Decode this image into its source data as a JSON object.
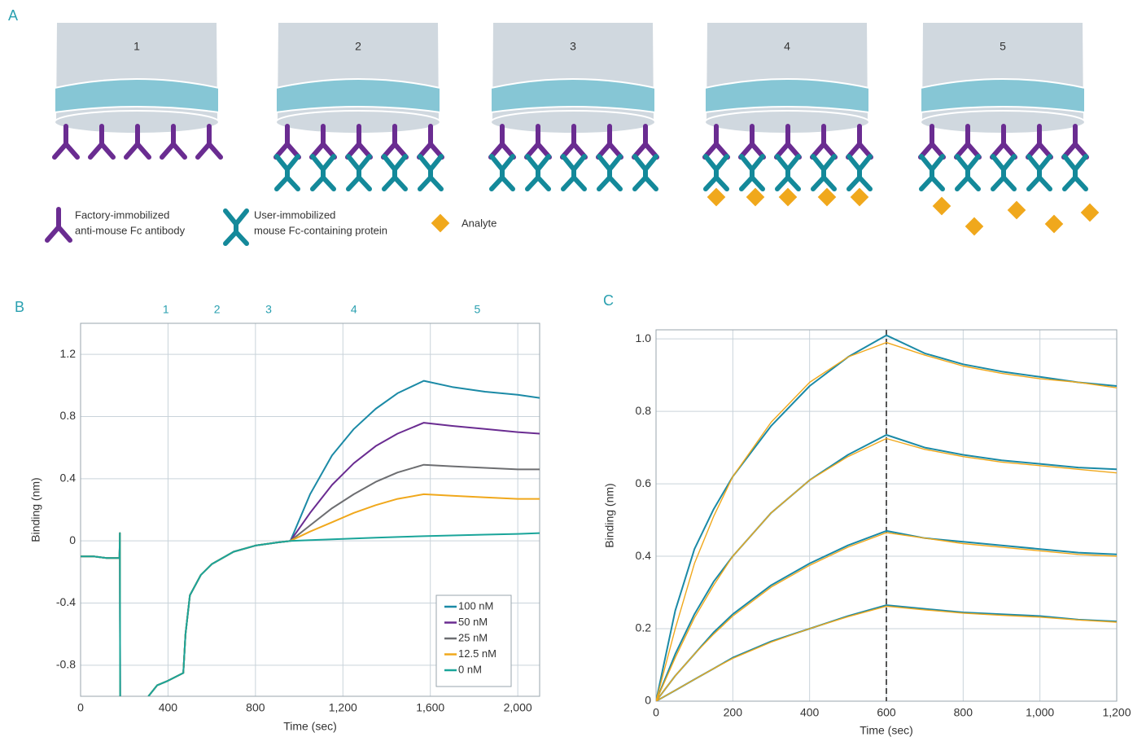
{
  "diagram": {
    "panel": "A",
    "sensors": [
      "1",
      "2",
      "3",
      "4",
      "5"
    ],
    "legend": [
      {
        "lines": [
          "Factory-immobilized",
          "anti-mouse Fc antibody"
        ]
      },
      {
        "lines": [
          "User-immobilized",
          "mouse Fc-containing protein"
        ]
      },
      {
        "lines": [
          "Analyte"
        ]
      }
    ]
  },
  "chart_data": [
    {
      "type": "line",
      "panel": "B",
      "xlabel": "Time (sec)",
      "ylabel": "Binding (nm)",
      "xlim": [
        0,
        2100
      ],
      "ylim": [
        -1.0,
        1.4
      ],
      "xticks": [
        0,
        400,
        800,
        {
          "value": 1200,
          "label": "1,200"
        },
        {
          "value": 1600,
          "label": "1,600"
        },
        {
          "value": 2000,
          "label": "2,000"
        }
      ],
      "yticks": [
        -0.8,
        -0.4,
        0,
        0.4,
        0.8,
        1.2
      ],
      "grid": true,
      "legend": "lower right",
      "annotations": [
        {
          "text": "1",
          "x": 390
        },
        {
          "text": "2",
          "x": 624
        },
        {
          "text": "3",
          "x": 860
        },
        {
          "text": "4",
          "x": 1250
        },
        {
          "text": "5",
          "x": 1815
        }
      ],
      "x": [
        0,
        60,
        120,
        178,
        180,
        181,
        250,
        310,
        350,
        400,
        470,
        480,
        500,
        550,
        600,
        700,
        800,
        900,
        960,
        1050,
        1150,
        1250,
        1350,
        1450,
        1570,
        1700,
        1850,
        2000,
        2100
      ],
      "series": [
        {
          "name": "100 nM",
          "color": "#1b8aa6",
          "values": [
            -0.1,
            -0.1,
            -0.11,
            -0.11,
            0.05,
            -1.0,
            null,
            -1.0,
            -0.93,
            -0.9,
            -0.85,
            -0.6,
            -0.35,
            -0.22,
            -0.15,
            -0.07,
            -0.03,
            -0.01,
            0,
            0.3,
            0.55,
            0.72,
            0.85,
            0.95,
            1.03,
            0.99,
            0.96,
            0.94,
            0.92
          ]
        },
        {
          "name": "50 nM",
          "color": "#6a2c91",
          "values": [
            -0.1,
            -0.1,
            -0.11,
            -0.11,
            0.05,
            -1.0,
            null,
            -1.0,
            -0.93,
            -0.9,
            -0.85,
            -0.6,
            -0.35,
            -0.22,
            -0.15,
            -0.07,
            -0.03,
            -0.01,
            0,
            0.18,
            0.36,
            0.5,
            0.61,
            0.69,
            0.76,
            0.74,
            0.72,
            0.7,
            0.69
          ]
        },
        {
          "name": "25 nM",
          "color": "#6d6e71",
          "values": [
            -0.1,
            -0.1,
            -0.11,
            -0.11,
            0.05,
            -1.0,
            null,
            -1.0,
            -0.93,
            -0.9,
            -0.85,
            -0.6,
            -0.35,
            -0.22,
            -0.15,
            -0.07,
            -0.03,
            -0.01,
            0,
            0.1,
            0.21,
            0.3,
            0.38,
            0.44,
            0.49,
            0.48,
            0.47,
            0.46,
            0.46
          ]
        },
        {
          "name": "12.5 nM",
          "color": "#f0a81c",
          "values": [
            -0.1,
            -0.1,
            -0.11,
            -0.11,
            0.05,
            -1.0,
            null,
            -1.0,
            -0.93,
            -0.9,
            -0.85,
            -0.6,
            -0.35,
            -0.22,
            -0.15,
            -0.07,
            -0.03,
            -0.01,
            0,
            0.06,
            0.12,
            0.18,
            0.23,
            0.27,
            0.3,
            0.29,
            0.28,
            0.27,
            0.27
          ]
        },
        {
          "name": "0 nM",
          "color": "#1aa59a",
          "values": [
            -0.1,
            -0.1,
            -0.11,
            -0.11,
            0.05,
            -1.0,
            null,
            -1.0,
            -0.93,
            -0.9,
            -0.85,
            -0.6,
            -0.35,
            -0.22,
            -0.15,
            -0.07,
            -0.03,
            -0.01,
            0,
            0.005,
            0.01,
            0.015,
            0.02,
            0.025,
            0.03,
            0.035,
            0.04,
            0.045,
            0.05
          ]
        }
      ]
    },
    {
      "type": "line",
      "panel": "C",
      "xlabel": "Time (sec)",
      "ylabel": "Binding (nm)",
      "xlim": [
        0,
        1200
      ],
      "ylim": [
        0,
        1.025
      ],
      "xticks": [
        0,
        200,
        400,
        600,
        800,
        {
          "value": 1000,
          "label": "1,000"
        },
        {
          "value": 1200,
          "label": "1,200"
        }
      ],
      "yticks": [
        0,
        0.2,
        0.4,
        0.6,
        0.8,
        {
          "value": 1.0,
          "label": "1.0"
        }
      ],
      "grid": true,
      "vline": 600,
      "x": [
        0,
        50,
        100,
        150,
        200,
        300,
        400,
        500,
        600,
        700,
        800,
        900,
        1000,
        1100,
        1200
      ],
      "series": [
        {
          "color": "#1b8aa6",
          "values": [
            0,
            0.25,
            0.42,
            0.53,
            0.62,
            0.76,
            0.87,
            0.95,
            1.01,
            0.96,
            0.93,
            0.91,
            0.895,
            0.88,
            0.87
          ]
        },
        {
          "color": "#1b8aa6",
          "values": [
            0,
            0.13,
            0.24,
            0.33,
            0.4,
            0.52,
            0.61,
            0.68,
            0.735,
            0.7,
            0.68,
            0.665,
            0.655,
            0.645,
            0.64
          ]
        },
        {
          "color": "#1b8aa6",
          "values": [
            0,
            0.07,
            0.13,
            0.19,
            0.24,
            0.32,
            0.38,
            0.43,
            0.47,
            0.45,
            0.44,
            0.43,
            0.42,
            0.41,
            0.405
          ]
        },
        {
          "color": "#1b8aa6",
          "values": [
            0,
            0.03,
            0.06,
            0.09,
            0.12,
            0.165,
            0.2,
            0.235,
            0.265,
            0.255,
            0.245,
            0.24,
            0.235,
            0.225,
            0.22
          ]
        },
        {
          "color": "#f0a81c",
          "values": [
            0,
            0.2,
            0.38,
            0.51,
            0.62,
            0.77,
            0.88,
            0.95,
            0.99,
            0.955,
            0.925,
            0.905,
            0.89,
            0.88,
            0.865
          ]
        },
        {
          "color": "#f0a81c",
          "values": [
            0,
            0.12,
            0.23,
            0.32,
            0.4,
            0.52,
            0.61,
            0.675,
            0.725,
            0.695,
            0.675,
            0.66,
            0.65,
            0.64,
            0.63
          ]
        },
        {
          "color": "#f0a81c",
          "values": [
            0,
            0.07,
            0.13,
            0.185,
            0.235,
            0.315,
            0.375,
            0.425,
            0.465,
            0.45,
            0.435,
            0.425,
            0.415,
            0.405,
            0.4
          ]
        },
        {
          "color": "#f0a81c",
          "values": [
            0,
            0.03,
            0.06,
            0.09,
            0.118,
            0.163,
            0.2,
            0.233,
            0.262,
            0.252,
            0.243,
            0.237,
            0.232,
            0.224,
            0.218
          ]
        }
      ]
    }
  ]
}
